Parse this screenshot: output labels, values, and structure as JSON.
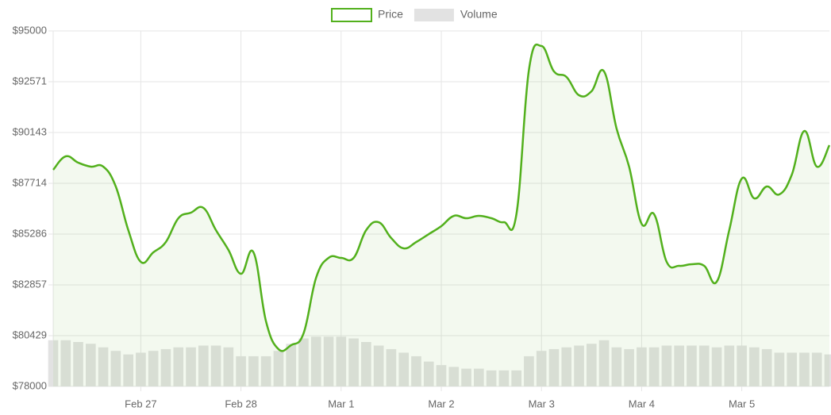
{
  "chart_data": {
    "type": "line",
    "categories": [
      null,
      null,
      null,
      null,
      null,
      null,
      null,
      "Feb 27",
      null,
      null,
      null,
      null,
      null,
      null,
      null,
      "Feb 28",
      null,
      null,
      null,
      null,
      null,
      null,
      null,
      "Mar 1",
      null,
      null,
      null,
      null,
      null,
      null,
      null,
      "Mar 2",
      null,
      null,
      null,
      null,
      null,
      null,
      null,
      "Mar 3",
      null,
      null,
      null,
      null,
      null,
      null,
      null,
      "Mar 4",
      null,
      null,
      null,
      null,
      null,
      null,
      null,
      "Mar 5",
      null,
      null,
      null,
      null,
      null,
      null,
      null
    ],
    "series": [
      {
        "name": "Price",
        "color": "#52b01c",
        "values": [
          88359,
          89004,
          88700,
          88510,
          88510,
          87562,
          85475,
          83957,
          84412,
          84906,
          86044,
          86310,
          86537,
          85475,
          84526,
          83387,
          84412,
          81110,
          79782,
          79971,
          80541,
          83198,
          84147,
          84147,
          84147,
          85475,
          85854,
          85095,
          84602,
          84906,
          85285,
          85665,
          86158,
          86044,
          86158,
          86044,
          85854,
          86234,
          93140,
          94279,
          93064,
          92799,
          91926,
          92116,
          93064,
          90332,
          88510,
          85778,
          86234,
          83957,
          83767,
          83843,
          83767,
          83008,
          85475,
          87941,
          86993,
          87562,
          87182,
          88131,
          90218,
          88510,
          89535
        ]
      },
      {
        "name": "Volume",
        "color": "#e2e2e2",
        "axis": "y2",
        "values": [
          13,
          13,
          12.5,
          12,
          11,
          10,
          9,
          9.5,
          10,
          10.5,
          11,
          11,
          11.5,
          11.5,
          11,
          8.5,
          8.5,
          8.5,
          10,
          12,
          13.5,
          14,
          14,
          14,
          13.5,
          12.5,
          11.5,
          10.5,
          9.5,
          8.5,
          7,
          6,
          5.5,
          5,
          5,
          4.5,
          4.5,
          4.5,
          8.5,
          10,
          10.5,
          11,
          11.5,
          12,
          13,
          11,
          10.5,
          11,
          11,
          11.5,
          11.5,
          11.5,
          11.5,
          11,
          11.5,
          11.5,
          11,
          10.5,
          9.5,
          9.5,
          9.5,
          9.5,
          9
        ]
      }
    ],
    "ylim": [
      78000,
      95000
    ],
    "yticks": [
      {
        "value": 78000,
        "label": "$78000"
      },
      {
        "value": 80429,
        "label": "$80429"
      },
      {
        "value": 82857,
        "label": "$82857"
      },
      {
        "value": 85286,
        "label": "$85286"
      },
      {
        "value": 87714,
        "label": "$87714"
      },
      {
        "value": 90143,
        "label": "$90143"
      },
      {
        "value": 92571,
        "label": "$92571"
      },
      {
        "value": 95000,
        "label": "$95000"
      }
    ],
    "y2lim": [
      0,
      100
    ],
    "grid": true,
    "legend": "top"
  }
}
